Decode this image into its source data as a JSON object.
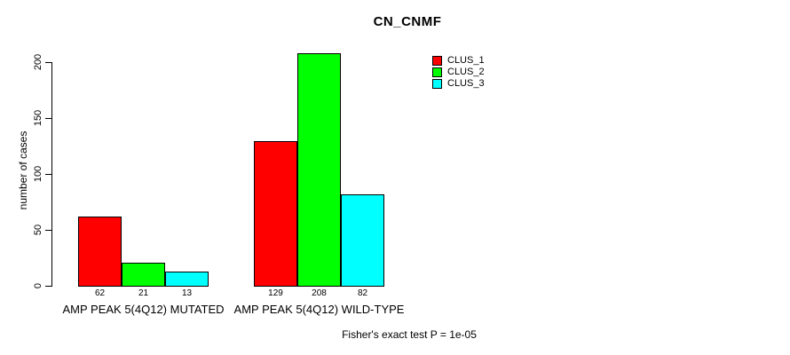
{
  "chart_data": {
    "type": "bar",
    "title": "CN_CNMF",
    "ylabel": "number of cases",
    "xlabel": "",
    "categories": [
      "AMP PEAK 5(4Q12) MUTATED",
      "AMP PEAK 5(4Q12) WILD-TYPE"
    ],
    "series": [
      {
        "name": "CLUS_1",
        "color": "#ff0000",
        "values": [
          62,
          129
        ]
      },
      {
        "name": "CLUS_2",
        "color": "#00ff00",
        "values": [
          21,
          208
        ]
      },
      {
        "name": "CLUS_3",
        "color": "#00ffff",
        "values": [
          13,
          82
        ]
      }
    ],
    "yticks": [
      0,
      50,
      100,
      150,
      200
    ],
    "ylim": [
      0,
      208
    ],
    "grid": false,
    "legend_position": "top-right-inside",
    "values_shown_under_bars": true,
    "annotation": "Fisher's exact test P = 1e-05"
  }
}
